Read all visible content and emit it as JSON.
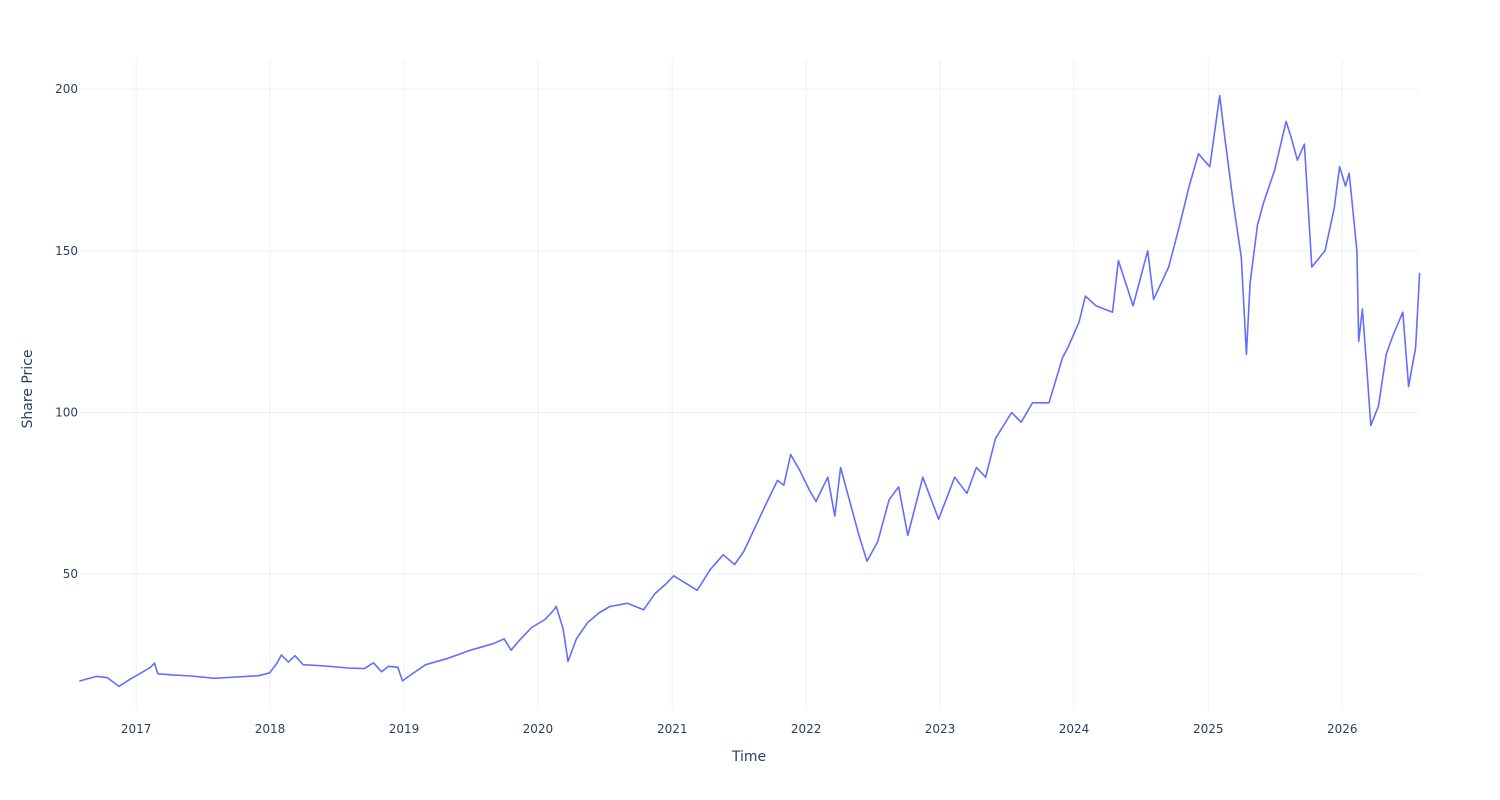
{
  "chart_data": {
    "type": "line",
    "title": "",
    "xlabel": "Time",
    "ylabel": "Share Price",
    "x_tick_labels": [
      "2017",
      "2018",
      "2019",
      "2020",
      "2021",
      "2022",
      "2023",
      "2024",
      "2025",
      "2026"
    ],
    "y_tick_labels": [
      "50",
      "100",
      "150",
      "200"
    ],
    "y_ticks": [
      50,
      100,
      150,
      200
    ],
    "xlim": [
      "2016-08-01",
      "2026-08-01"
    ],
    "ylim": [
      8,
      209
    ],
    "grid": true,
    "legend": "none",
    "series_color": "#636efa",
    "series": [
      {
        "values": [
          [
            "2016-08-01",
            17.0
          ],
          [
            "2016-09-15",
            18.4
          ],
          [
            "2016-10-15",
            18.0
          ],
          [
            "2016-11-15",
            15.3
          ],
          [
            "2016-12-15",
            17.5
          ],
          [
            "2017-01-15",
            19.5
          ],
          [
            "2017-02-10",
            21.3
          ],
          [
            "2017-02-20",
            22.5
          ],
          [
            "2017-03-01",
            19.2
          ],
          [
            "2017-04-15",
            18.8
          ],
          [
            "2017-06-01",
            18.5
          ],
          [
            "2017-08-01",
            17.8
          ],
          [
            "2017-10-01",
            18.2
          ],
          [
            "2017-12-01",
            18.6
          ],
          [
            "2017-12-31",
            19.5
          ],
          [
            "2018-01-20",
            22.5
          ],
          [
            "2018-02-01",
            25.0
          ],
          [
            "2018-02-20",
            22.8
          ],
          [
            "2018-03-10",
            24.8
          ],
          [
            "2018-04-01",
            22.0
          ],
          [
            "2018-06-01",
            21.6
          ],
          [
            "2018-08-01",
            21.0
          ],
          [
            "2018-09-15",
            20.8
          ],
          [
            "2018-10-10",
            22.6
          ],
          [
            "2018-11-01",
            19.8
          ],
          [
            "2018-11-20",
            21.5
          ],
          [
            "2018-12-15",
            21.2
          ],
          [
            "2018-12-28",
            17.0
          ],
          [
            "2019-01-15",
            18.5
          ],
          [
            "2019-03-01",
            22.0
          ],
          [
            "2019-05-01",
            24.0
          ],
          [
            "2019-07-01",
            26.5
          ],
          [
            "2019-09-01",
            28.5
          ],
          [
            "2019-10-01",
            30.0
          ],
          [
            "2019-10-20",
            26.5
          ],
          [
            "2019-11-15",
            30.0
          ],
          [
            "2019-12-15",
            33.5
          ],
          [
            "2020-01-20",
            36.0
          ],
          [
            "2020-02-10",
            38.5
          ],
          [
            "2020-02-20",
            40.0
          ],
          [
            "2020-03-10",
            33.0
          ],
          [
            "2020-03-23",
            23.0
          ],
          [
            "2020-04-15",
            30.0
          ],
          [
            "2020-05-15",
            35.0
          ],
          [
            "2020-06-15",
            38.0
          ],
          [
            "2020-07-15",
            40.0
          ],
          [
            "2020-09-01",
            41.0
          ],
          [
            "2020-10-15",
            39.0
          ],
          [
            "2020-11-15",
            44.0
          ],
          [
            "2020-12-15",
            47.0
          ],
          [
            "2021-01-05",
            49.5
          ],
          [
            "2021-03-10",
            45.0
          ],
          [
            "2021-04-15",
            51.5
          ],
          [
            "2021-05-20",
            56.0
          ],
          [
            "2021-06-20",
            53.0
          ],
          [
            "2021-07-15",
            57.0
          ],
          [
            "2021-08-15",
            64.5
          ],
          [
            "2021-09-15",
            72.0
          ],
          [
            "2021-10-15",
            79.0
          ],
          [
            "2021-11-01",
            77.5
          ],
          [
            "2021-11-20",
            87.0
          ],
          [
            "2021-12-15",
            82.0
          ],
          [
            "2022-01-10",
            76.0
          ],
          [
            "2022-01-28",
            72.5
          ],
          [
            "2022-03-01",
            80.0
          ],
          [
            "2022-03-20",
            68.0
          ],
          [
            "2022-04-05",
            83.0
          ],
          [
            "2022-05-01",
            72.0
          ],
          [
            "2022-05-25",
            62.0
          ],
          [
            "2022-06-16",
            54.0
          ],
          [
            "2022-07-15",
            60.0
          ],
          [
            "2022-08-15",
            73.0
          ],
          [
            "2022-09-10",
            77.0
          ],
          [
            "2022-10-05",
            62.0
          ],
          [
            "2022-11-15",
            80.0
          ],
          [
            "2022-12-28",
            67.0
          ],
          [
            "2023-02-10",
            80.0
          ],
          [
            "2023-03-15",
            75.0
          ],
          [
            "2023-04-10",
            83.0
          ],
          [
            "2023-05-05",
            80.0
          ],
          [
            "2023-06-01",
            92.0
          ],
          [
            "2023-07-15",
            100.0
          ],
          [
            "2023-08-10",
            97.0
          ],
          [
            "2023-09-10",
            103.0
          ],
          [
            "2023-10-25",
            103.0
          ],
          [
            "2023-12-01",
            117.0
          ],
          [
            "2023-12-15",
            120.0
          ],
          [
            "2024-01-15",
            128.0
          ],
          [
            "2024-02-01",
            136.0
          ],
          [
            "2024-03-01",
            133.0
          ],
          [
            "2024-04-15",
            131.0
          ],
          [
            "2024-05-01",
            147.0
          ],
          [
            "2024-06-10",
            133.0
          ],
          [
            "2024-07-20",
            150.0
          ],
          [
            "2024-08-05",
            135.0
          ],
          [
            "2024-09-15",
            145.0
          ],
          [
            "2024-10-15",
            158.0
          ],
          [
            "2024-11-10",
            170.0
          ],
          [
            "2024-12-05",
            180.0
          ],
          [
            "2025-01-05",
            176.0
          ],
          [
            "2025-02-01",
            198.0
          ],
          [
            "2025-02-15",
            185.0
          ],
          [
            "2025-03-10",
            165.0
          ],
          [
            "2025-04-01",
            148.0
          ],
          [
            "2025-04-15",
            118.0
          ],
          [
            "2025-04-25",
            140.0
          ],
          [
            "2025-05-15",
            158.0
          ],
          [
            "2025-06-01",
            165.0
          ],
          [
            "2025-07-01",
            175.0
          ],
          [
            "2025-08-01",
            190.0
          ],
          [
            "2025-08-15",
            185.0
          ],
          [
            "2025-09-01",
            178.0
          ],
          [
            "2025-09-20",
            183.0
          ],
          [
            "2025-10-10",
            145.0
          ],
          [
            "2025-11-15",
            150.0
          ],
          [
            "2025-12-10",
            163.0
          ],
          [
            "2025-12-25",
            176.0
          ],
          [
            "2026-01-10",
            170.0
          ],
          [
            "2026-01-20",
            174.0
          ],
          [
            "2026-02-10",
            150.0
          ],
          [
            "2026-02-15",
            122.0
          ],
          [
            "2026-02-25",
            132.0
          ],
          [
            "2026-03-10",
            112.0
          ],
          [
            "2026-03-20",
            96.0
          ],
          [
            "2026-04-10",
            102.0
          ],
          [
            "2026-05-01",
            118.0
          ],
          [
            "2026-05-20",
            124.0
          ],
          [
            "2026-06-15",
            131.0
          ],
          [
            "2026-07-01",
            108.0
          ],
          [
            "2026-07-20",
            120.0
          ],
          [
            "2026-07-31",
            143.0
          ]
        ]
      }
    ]
  }
}
